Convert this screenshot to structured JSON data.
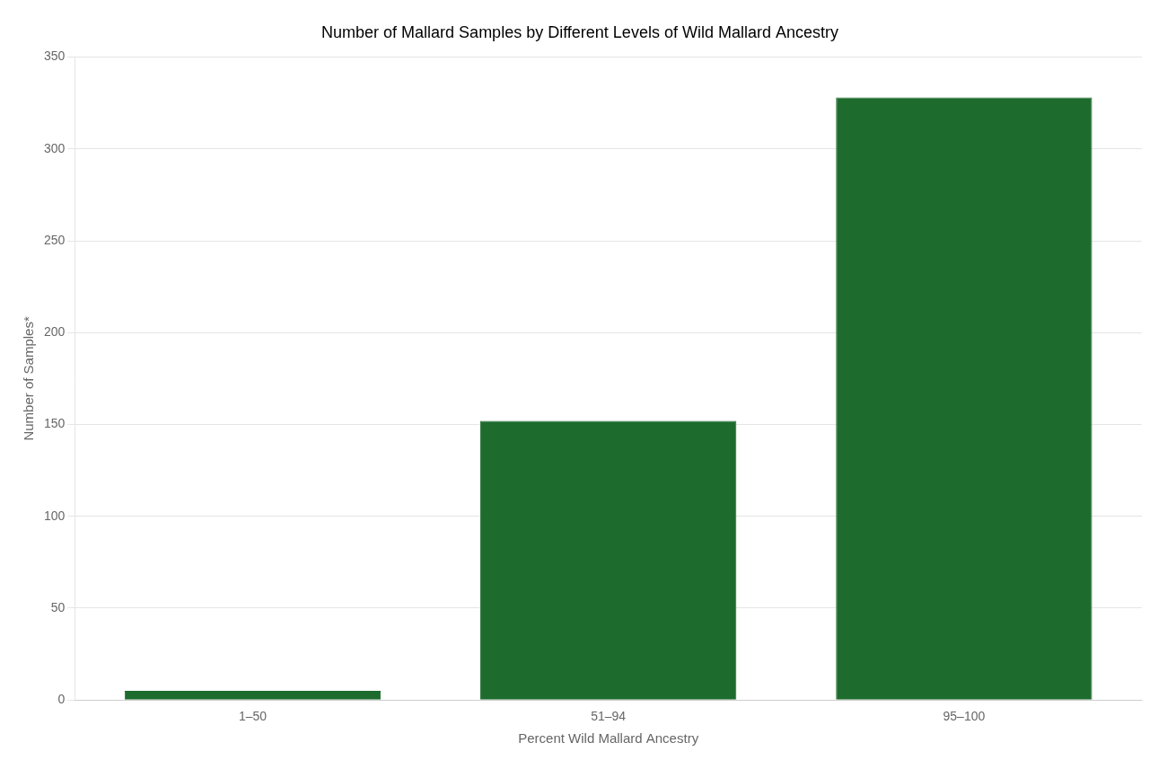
{
  "chart_data": {
    "type": "bar",
    "title": "Number of Mallard Samples by Different Levels of Wild Mallard Ancestry",
    "xlabel": "Percent Wild Mallard Ancestry",
    "ylabel": "Number of Samples*",
    "categories": [
      "1–50",
      "51–94",
      "95–100"
    ],
    "values": [
      5,
      152,
      328
    ],
    "color": "#1e6b2e",
    "ylim": [
      0,
      350
    ],
    "yticks": [
      0,
      50,
      100,
      150,
      200,
      250,
      300,
      350
    ],
    "grid": true
  }
}
